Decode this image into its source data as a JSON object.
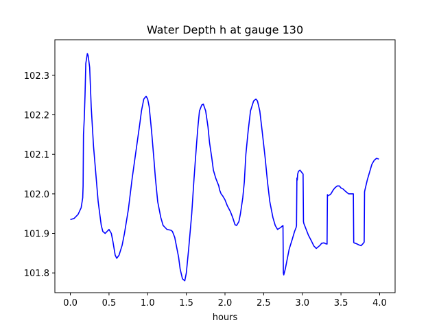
{
  "chart_data": {
    "type": "line",
    "title": "Water Depth h at gauge 130",
    "xlabel": "hours",
    "ylabel": "",
    "xlim": [
      -0.2,
      4.2
    ],
    "ylim": [
      101.75,
      102.39
    ],
    "xticks": [
      0.0,
      0.5,
      1.0,
      1.5,
      2.0,
      2.5,
      3.0,
      3.5,
      4.0
    ],
    "xtick_labels": [
      "0.0",
      "0.5",
      "1.0",
      "1.5",
      "2.0",
      "2.5",
      "3.0",
      "3.5",
      "4.0"
    ],
    "yticks": [
      101.8,
      101.9,
      102.0,
      102.1,
      102.2,
      102.3
    ],
    "ytick_labels": [
      "101.8",
      "101.9",
      "102.0",
      "102.1",
      "102.2",
      "102.3"
    ],
    "grid": false,
    "series": [
      {
        "color": "#0000ff",
        "x": [
          0.0,
          0.05,
          0.1,
          0.14,
          0.16,
          0.165,
          0.17,
          0.18,
          0.19,
          0.2,
          0.22,
          0.23,
          0.25,
          0.27,
          0.3,
          0.33,
          0.36,
          0.4,
          0.42,
          0.45,
          0.5,
          0.53,
          0.55,
          0.58,
          0.6,
          0.63,
          0.67,
          0.7,
          0.75,
          0.8,
          0.85,
          0.9,
          0.92,
          0.95,
          0.98,
          1.0,
          1.02,
          1.05,
          1.08,
          1.1,
          1.13,
          1.17,
          1.2,
          1.25,
          1.3,
          1.32,
          1.35,
          1.38,
          1.4,
          1.42,
          1.45,
          1.48,
          1.5,
          1.53,
          1.57,
          1.6,
          1.63,
          1.65,
          1.67,
          1.68,
          1.7,
          1.72,
          1.75,
          1.78,
          1.8,
          1.83,
          1.85,
          1.88,
          1.9,
          1.92,
          1.93,
          1.95,
          1.97,
          2.0,
          2.03,
          2.07,
          2.1,
          2.13,
          2.15,
          2.18,
          2.2,
          2.23,
          2.25,
          2.27,
          2.3,
          2.33,
          2.37,
          2.4,
          2.42,
          2.45,
          2.48,
          2.52,
          2.55,
          2.58,
          2.62,
          2.65,
          2.68,
          2.72,
          2.75,
          2.755,
          2.76,
          2.78,
          2.8,
          2.83,
          2.87,
          2.9,
          2.92,
          2.925,
          2.93,
          2.935,
          2.94,
          2.95,
          2.97,
          2.99,
          3.01,
          3.015,
          3.02,
          3.05,
          3.08,
          3.12,
          3.15,
          3.18,
          3.2,
          3.23,
          3.25,
          3.28,
          3.3,
          3.32,
          3.325,
          3.33,
          3.35,
          3.37,
          3.4,
          3.42,
          3.45,
          3.48,
          3.5,
          3.53,
          3.55,
          3.58,
          3.6,
          3.63,
          3.66,
          3.665,
          3.67,
          3.7,
          3.73,
          3.76,
          3.78,
          3.8,
          3.805,
          3.81,
          3.84,
          3.87,
          3.9,
          3.93,
          3.96,
          3.99
        ],
        "y": [
          101.935,
          101.938,
          101.948,
          101.965,
          101.99,
          102.02,
          102.15,
          102.19,
          102.25,
          102.33,
          102.355,
          102.35,
          102.32,
          102.22,
          102.12,
          102.05,
          101.98,
          101.92,
          101.905,
          101.9,
          101.91,
          101.9,
          101.88,
          101.845,
          101.837,
          101.845,
          101.87,
          101.9,
          101.96,
          102.04,
          102.11,
          102.18,
          102.21,
          102.24,
          102.247,
          102.24,
          102.22,
          102.16,
          102.09,
          102.04,
          101.98,
          101.94,
          101.92,
          101.91,
          101.908,
          101.905,
          101.89,
          101.86,
          101.84,
          101.81,
          101.785,
          101.78,
          101.8,
          101.86,
          101.95,
          102.04,
          102.12,
          102.17,
          102.21,
          102.215,
          102.225,
          102.227,
          102.21,
          102.17,
          102.13,
          102.09,
          102.06,
          102.04,
          102.03,
          102.02,
          102.01,
          102.0,
          101.995,
          101.985,
          101.97,
          101.955,
          101.94,
          101.922,
          101.92,
          101.93,
          101.95,
          101.99,
          102.03,
          102.1,
          102.16,
          102.21,
          102.235,
          102.24,
          102.235,
          102.21,
          102.16,
          102.09,
          102.03,
          101.98,
          101.94,
          101.92,
          101.91,
          101.915,
          101.92,
          101.8,
          101.795,
          101.81,
          101.83,
          101.86,
          101.885,
          101.905,
          101.915,
          101.92,
          102.04,
          102.035,
          102.05,
          102.057,
          102.06,
          102.055,
          102.05,
          101.93,
          101.925,
          101.91,
          101.895,
          101.88,
          101.868,
          101.862,
          101.865,
          101.87,
          101.875,
          101.876,
          101.874,
          101.873,
          101.998,
          101.995,
          101.997,
          102.0,
          102.01,
          102.015,
          102.02,
          102.02,
          102.015,
          102.012,
          102.008,
          102.003,
          102.0,
          102.0,
          102.0,
          101.877,
          101.876,
          101.874,
          101.871,
          101.869,
          101.873,
          101.878,
          102.005,
          102.01,
          102.035,
          102.055,
          102.075,
          102.085,
          102.09,
          102.088
        ]
      }
    ]
  }
}
